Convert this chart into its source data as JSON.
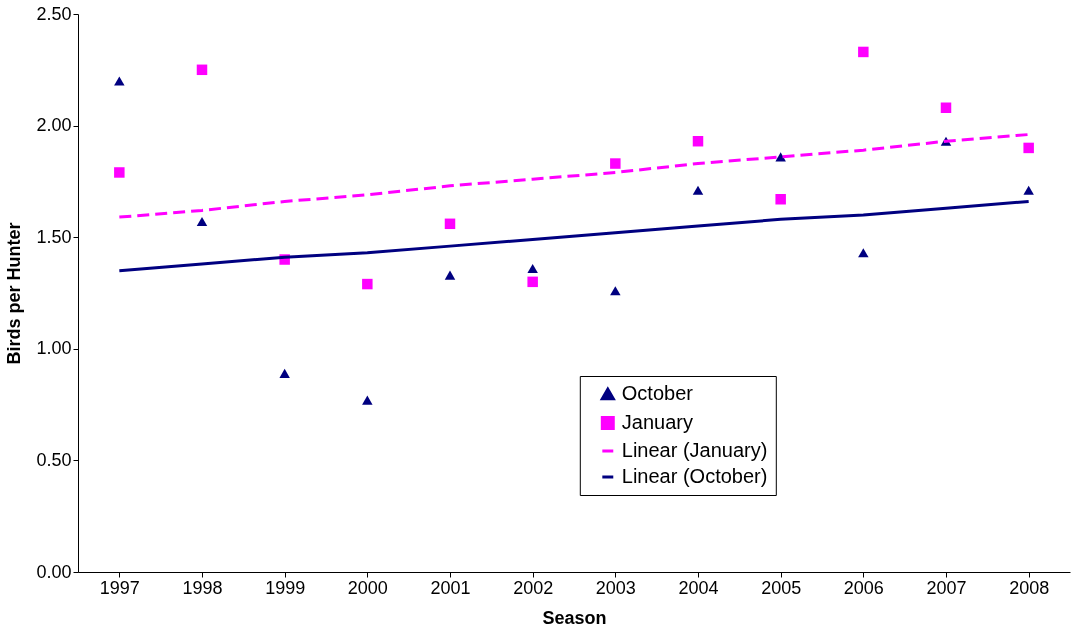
{
  "chart_data": {
    "type": "scatter",
    "xlabel": "Season",
    "ylabel": "Birds per Hunter",
    "categories": [
      "1997",
      "1998",
      "1999",
      "2000",
      "2001",
      "2002",
      "2003",
      "2004",
      "2005",
      "2006",
      "2007",
      "2008"
    ],
    "ylim": [
      0,
      2.5
    ],
    "yticks": [
      {
        "value": 0,
        "label": "0.00"
      },
      {
        "value": 0.5,
        "label": "0.50"
      },
      {
        "value": 1,
        "label": "1.00"
      },
      {
        "value": 1.5,
        "label": "1.50"
      },
      {
        "value": 2,
        "label": "2.00"
      },
      {
        "value": 2.5,
        "label": "2.50"
      }
    ],
    "grid": false,
    "legend": "bottom",
    "series": [
      {
        "name": "October",
        "marker": "triangle",
        "color": "#000080",
        "values": [
          2.2,
          1.57,
          0.89,
          0.77,
          1.33,
          1.36,
          1.26,
          1.71,
          1.86,
          1.43,
          1.93,
          1.71
        ]
      },
      {
        "name": "January",
        "marker": "square",
        "color": "#ff00ff",
        "values": [
          1.79,
          2.25,
          1.4,
          1.29,
          1.56,
          1.3,
          1.83,
          1.93,
          1.67,
          2.33,
          2.08,
          1.9
        ]
      },
      {
        "name": "Linear (January)",
        "type": "line",
        "line_style": "dashed",
        "color": "#ff00ff",
        "values": [
          1.59,
          1.62,
          1.66,
          1.69,
          1.73,
          1.76,
          1.79,
          1.83,
          1.86,
          1.89,
          1.93,
          1.96
        ]
      },
      {
        "name": "Linear (October)",
        "type": "line",
        "line_style": "solid",
        "color": "#000080",
        "values": [
          1.35,
          1.38,
          1.41,
          1.43,
          1.46,
          1.49,
          1.52,
          1.55,
          1.58,
          1.6,
          1.63,
          1.66
        ]
      }
    ]
  }
}
